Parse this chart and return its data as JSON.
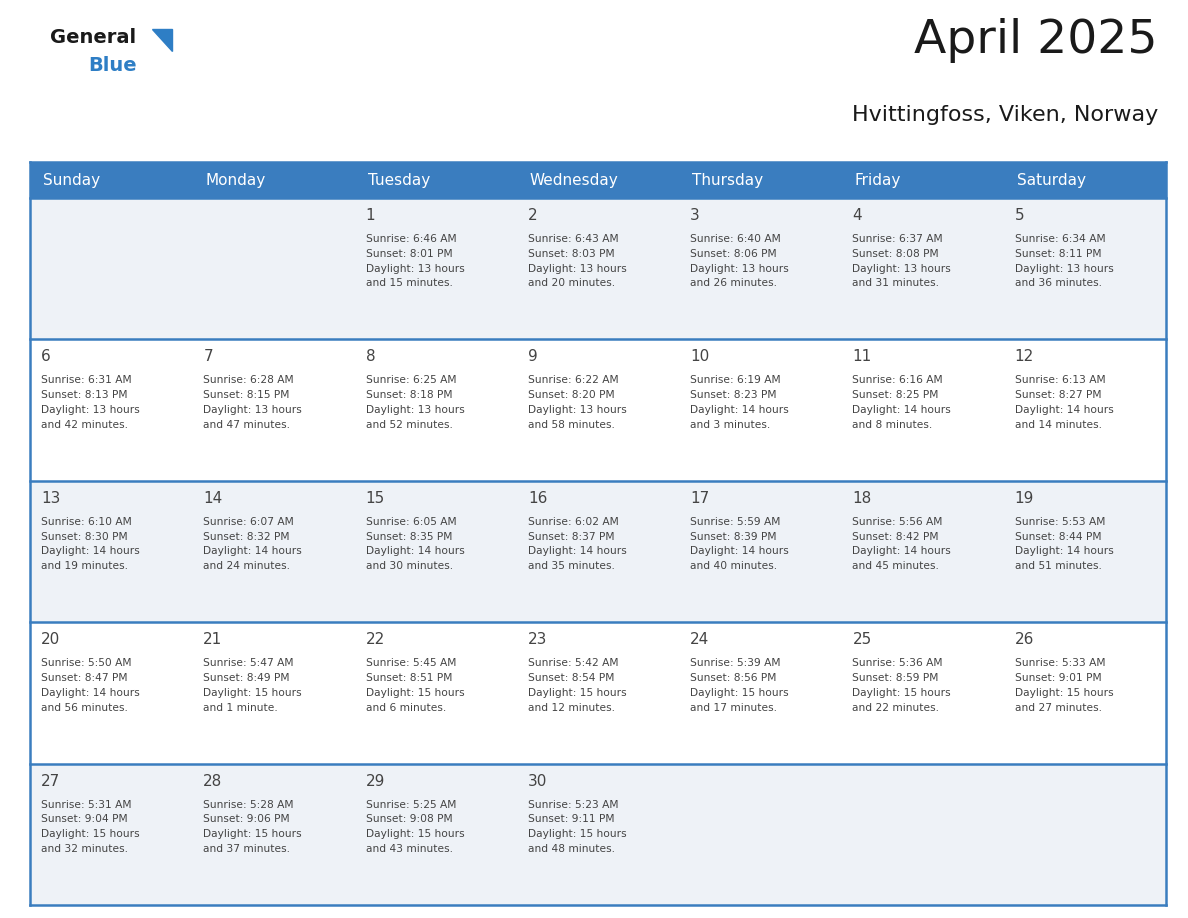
{
  "title": "April 2025",
  "subtitle": "Hvittingfoss, Viken, Norway",
  "header_bg_color": "#3a7dbf",
  "header_text_color": "#FFFFFF",
  "day_names": [
    "Sunday",
    "Monday",
    "Tuesday",
    "Wednesday",
    "Thursday",
    "Friday",
    "Saturday"
  ],
  "row_line_color": "#3a7dbf",
  "text_color": "#444444",
  "title_color": "#1a1a1a",
  "logo_general_color": "#1a1a1a",
  "logo_blue_color": "#2E7EC5",
  "cell_bg_colors": [
    "#eef2f7",
    "#ffffff",
    "#eef2f7",
    "#ffffff",
    "#eef2f7"
  ],
  "weeks": [
    [
      {
        "day": null,
        "text": ""
      },
      {
        "day": null,
        "text": ""
      },
      {
        "day": 1,
        "text": "Sunrise: 6:46 AM\nSunset: 8:01 PM\nDaylight: 13 hours\nand 15 minutes."
      },
      {
        "day": 2,
        "text": "Sunrise: 6:43 AM\nSunset: 8:03 PM\nDaylight: 13 hours\nand 20 minutes."
      },
      {
        "day": 3,
        "text": "Sunrise: 6:40 AM\nSunset: 8:06 PM\nDaylight: 13 hours\nand 26 minutes."
      },
      {
        "day": 4,
        "text": "Sunrise: 6:37 AM\nSunset: 8:08 PM\nDaylight: 13 hours\nand 31 minutes."
      },
      {
        "day": 5,
        "text": "Sunrise: 6:34 AM\nSunset: 8:11 PM\nDaylight: 13 hours\nand 36 minutes."
      }
    ],
    [
      {
        "day": 6,
        "text": "Sunrise: 6:31 AM\nSunset: 8:13 PM\nDaylight: 13 hours\nand 42 minutes."
      },
      {
        "day": 7,
        "text": "Sunrise: 6:28 AM\nSunset: 8:15 PM\nDaylight: 13 hours\nand 47 minutes."
      },
      {
        "day": 8,
        "text": "Sunrise: 6:25 AM\nSunset: 8:18 PM\nDaylight: 13 hours\nand 52 minutes."
      },
      {
        "day": 9,
        "text": "Sunrise: 6:22 AM\nSunset: 8:20 PM\nDaylight: 13 hours\nand 58 minutes."
      },
      {
        "day": 10,
        "text": "Sunrise: 6:19 AM\nSunset: 8:23 PM\nDaylight: 14 hours\nand 3 minutes."
      },
      {
        "day": 11,
        "text": "Sunrise: 6:16 AM\nSunset: 8:25 PM\nDaylight: 14 hours\nand 8 minutes."
      },
      {
        "day": 12,
        "text": "Sunrise: 6:13 AM\nSunset: 8:27 PM\nDaylight: 14 hours\nand 14 minutes."
      }
    ],
    [
      {
        "day": 13,
        "text": "Sunrise: 6:10 AM\nSunset: 8:30 PM\nDaylight: 14 hours\nand 19 minutes."
      },
      {
        "day": 14,
        "text": "Sunrise: 6:07 AM\nSunset: 8:32 PM\nDaylight: 14 hours\nand 24 minutes."
      },
      {
        "day": 15,
        "text": "Sunrise: 6:05 AM\nSunset: 8:35 PM\nDaylight: 14 hours\nand 30 minutes."
      },
      {
        "day": 16,
        "text": "Sunrise: 6:02 AM\nSunset: 8:37 PM\nDaylight: 14 hours\nand 35 minutes."
      },
      {
        "day": 17,
        "text": "Sunrise: 5:59 AM\nSunset: 8:39 PM\nDaylight: 14 hours\nand 40 minutes."
      },
      {
        "day": 18,
        "text": "Sunrise: 5:56 AM\nSunset: 8:42 PM\nDaylight: 14 hours\nand 45 minutes."
      },
      {
        "day": 19,
        "text": "Sunrise: 5:53 AM\nSunset: 8:44 PM\nDaylight: 14 hours\nand 51 minutes."
      }
    ],
    [
      {
        "day": 20,
        "text": "Sunrise: 5:50 AM\nSunset: 8:47 PM\nDaylight: 14 hours\nand 56 minutes."
      },
      {
        "day": 21,
        "text": "Sunrise: 5:47 AM\nSunset: 8:49 PM\nDaylight: 15 hours\nand 1 minute."
      },
      {
        "day": 22,
        "text": "Sunrise: 5:45 AM\nSunset: 8:51 PM\nDaylight: 15 hours\nand 6 minutes."
      },
      {
        "day": 23,
        "text": "Sunrise: 5:42 AM\nSunset: 8:54 PM\nDaylight: 15 hours\nand 12 minutes."
      },
      {
        "day": 24,
        "text": "Sunrise: 5:39 AM\nSunset: 8:56 PM\nDaylight: 15 hours\nand 17 minutes."
      },
      {
        "day": 25,
        "text": "Sunrise: 5:36 AM\nSunset: 8:59 PM\nDaylight: 15 hours\nand 22 minutes."
      },
      {
        "day": 26,
        "text": "Sunrise: 5:33 AM\nSunset: 9:01 PM\nDaylight: 15 hours\nand 27 minutes."
      }
    ],
    [
      {
        "day": 27,
        "text": "Sunrise: 5:31 AM\nSunset: 9:04 PM\nDaylight: 15 hours\nand 32 minutes."
      },
      {
        "day": 28,
        "text": "Sunrise: 5:28 AM\nSunset: 9:06 PM\nDaylight: 15 hours\nand 37 minutes."
      },
      {
        "day": 29,
        "text": "Sunrise: 5:25 AM\nSunset: 9:08 PM\nDaylight: 15 hours\nand 43 minutes."
      },
      {
        "day": 30,
        "text": "Sunrise: 5:23 AM\nSunset: 9:11 PM\nDaylight: 15 hours\nand 48 minutes."
      },
      {
        "day": null,
        "text": ""
      },
      {
        "day": null,
        "text": ""
      },
      {
        "day": null,
        "text": ""
      }
    ]
  ]
}
